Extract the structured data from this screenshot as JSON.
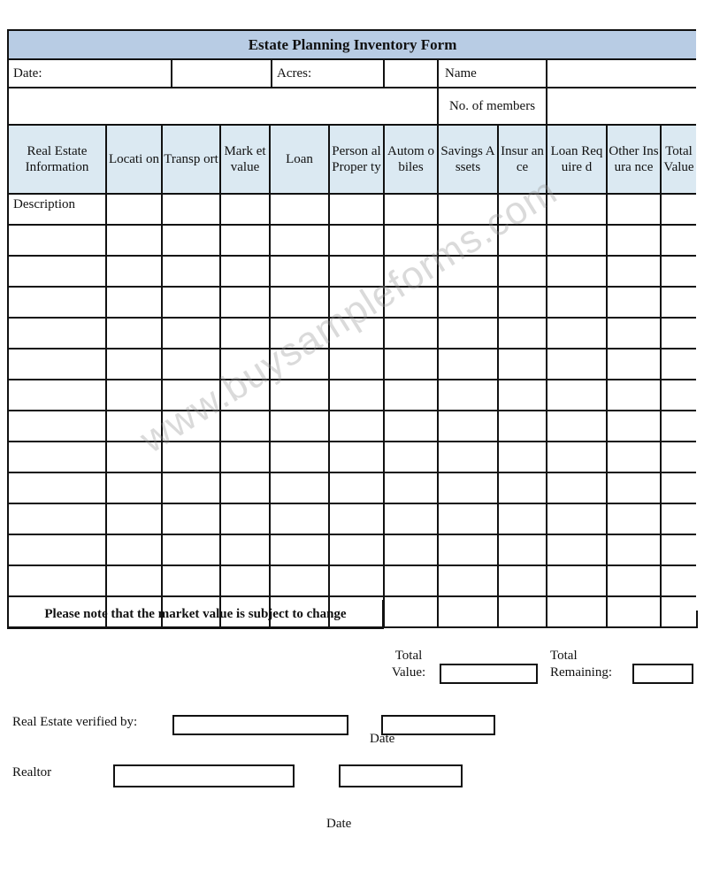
{
  "title": "Estate Planning Inventory Form",
  "header_fields": {
    "date_label": "Date:",
    "acres_label": "Acres:",
    "name_label": "Name",
    "members_label": "No. of members"
  },
  "columns": [
    "Real Estate Information",
    "Locati on",
    "Transp ort",
    "Mark et value",
    "Loan",
    "Person al Proper ty",
    "Autom obiles",
    "Savings Assets",
    "Insur ance",
    "Loan Require d",
    "Other Insura nce",
    "Total Value"
  ],
  "first_row_label": "Description",
  "row_count": 14,
  "note": "Please note that the market value is subject to change",
  "totals": {
    "total_value_label": "Total Value:",
    "total_remaining_label": "Total Remaining:"
  },
  "signoff": {
    "verified_label": "Real Estate verified by:",
    "date_label_1": "Date",
    "realtor_label": "Realtor",
    "date_label_2": "Date"
  },
  "watermark": "www.buysampleforms.com",
  "colors": {
    "title_bg": "#b8cce4",
    "header_bg": "#dbe9f2"
  }
}
